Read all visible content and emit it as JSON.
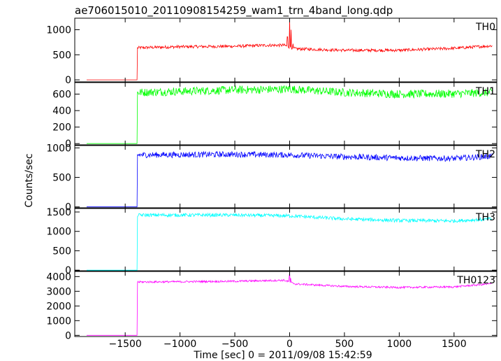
{
  "chart_data": {
    "type": "line",
    "title": "ae706015010_20110908154259_wam1_trn_4band_long.qdp",
    "xlabel": "Time [sec] 0 = 2011/09/08 15:42:59",
    "ylabel": "Counts/sec",
    "xlim": [
      -1960,
      1890
    ],
    "xticks": [
      -1500,
      -1000,
      -500,
      0,
      500,
      1000,
      1500
    ],
    "xtick_labels": [
      "−1500",
      "−1000",
      "−500",
      "0",
      "500",
      "1000",
      "1500"
    ],
    "x_start": -1850,
    "x_end": 1850,
    "onset_time": -1390,
    "grid": false,
    "panels": [
      {
        "label": "TH0",
        "color": "#ff0000",
        "ylim": [
          -40,
          1230
        ],
        "yticks": [
          0,
          500,
          1000
        ],
        "pre_level": 0,
        "baseline": [
          [
            -1390,
            640
          ],
          [
            -1000,
            660
          ],
          [
            -500,
            670
          ],
          [
            -200,
            690
          ],
          [
            -50,
            690
          ],
          [
            50,
            620
          ],
          [
            500,
            590
          ],
          [
            1000,
            590
          ],
          [
            1500,
            630
          ],
          [
            1850,
            680
          ]
        ],
        "noise": 30,
        "spikes": [
          [
            -20,
            860
          ],
          [
            0,
            1240
          ],
          [
            12,
            1000
          ],
          [
            30,
            720
          ]
        ]
      },
      {
        "label": "TH1",
        "color": "#00ff00",
        "ylim": [
          -15,
          740
        ],
        "yticks": [
          0,
          200,
          400,
          600
        ],
        "pre_level": 0,
        "baseline": [
          [
            -1390,
            620
          ],
          [
            -500,
            650
          ],
          [
            0,
            660
          ],
          [
            500,
            620
          ],
          [
            1000,
            600
          ],
          [
            1500,
            605
          ],
          [
            1850,
            620
          ]
        ],
        "noise": 50,
        "spikes": [
          [
            0,
            720
          ]
        ]
      },
      {
        "label": "TH2",
        "color": "#0000ff",
        "ylim": [
          -15,
          1040
        ],
        "yticks": [
          0,
          500,
          1000
        ],
        "pre_level": 0,
        "baseline": [
          [
            -1390,
            880
          ],
          [
            -500,
            890
          ],
          [
            0,
            880
          ],
          [
            500,
            850
          ],
          [
            1000,
            830
          ],
          [
            1500,
            820
          ],
          [
            1850,
            860
          ]
        ],
        "noise": 50,
        "spikes": []
      },
      {
        "label": "TH3",
        "color": "#00ffff",
        "ylim": [
          -15,
          1590
        ],
        "yticks": [
          0,
          500,
          1000,
          1500
        ],
        "pre_level": 0,
        "baseline": [
          [
            -1390,
            1420
          ],
          [
            -500,
            1420
          ],
          [
            0,
            1400
          ],
          [
            500,
            1320
          ],
          [
            1000,
            1280
          ],
          [
            1500,
            1270
          ],
          [
            1850,
            1320
          ]
        ],
        "noise": 45,
        "spikes": []
      },
      {
        "label": "TH0123",
        "color": "#ff00ff",
        "ylim": [
          -80,
          4350
        ],
        "yticks": [
          0,
          1000,
          2000,
          3000,
          4000
        ],
        "pre_level": 0,
        "baseline": [
          [
            -1390,
            3630
          ],
          [
            -500,
            3680
          ],
          [
            -50,
            3750
          ],
          [
            50,
            3500
          ],
          [
            500,
            3330
          ],
          [
            1000,
            3260
          ],
          [
            1500,
            3300
          ],
          [
            1850,
            3520
          ]
        ],
        "noise": 65,
        "spikes": [
          [
            -5,
            3950
          ],
          [
            0,
            4300
          ],
          [
            10,
            3900
          ]
        ]
      }
    ]
  }
}
